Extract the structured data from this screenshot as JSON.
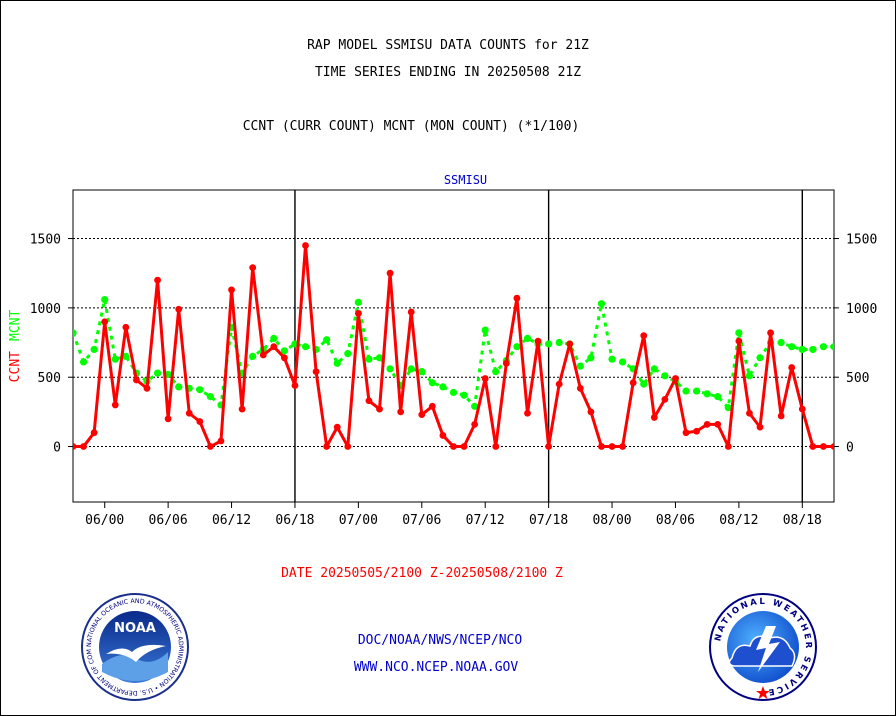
{
  "header": {
    "line1": "RAP MODEL SSMISU DATA COUNTS for 21Z",
    "line2": "TIME SERIES ENDING IN 20250508 21Z",
    "line3": "CCNT (CURR COUNT) MCNT (MON COUNT) (*1/100)"
  },
  "footer": {
    "date_range": "DATE 20250505/2100 Z-20250508/2100 Z",
    "org_path": "DOC/NOAA/NWS/NCEP/NCO",
    "website": "WWW.NCO.NCEP.NOAA.GOV"
  },
  "logos": {
    "noaa": {
      "center_text": "NOAA",
      "ring_text": "NATIONAL OCEANIC AND ATMOSPHERIC ADMINISTRATION • U.S. DEPARTMENT OF COMMERCE •"
    },
    "nws": {
      "ring_text": "NATIONAL WEATHER SERVICE"
    }
  },
  "colors": {
    "ccnt": "#ff0000",
    "mcnt": "#00ff00",
    "title": "#000000",
    "panel_title": "#0000cc",
    "footer_red": "#ff0000",
    "footer_blue": "#0000cc"
  },
  "chart_data": {
    "type": "line",
    "title": "SSMISU",
    "ylabel_parts": [
      "CCNT",
      "MCNT"
    ],
    "ylim": [
      -400,
      1850
    ],
    "yticks": [
      0,
      500,
      1000,
      1500
    ],
    "ytick_labels": [
      "0",
      "500",
      "1000",
      "1500"
    ],
    "xlim": [
      0,
      72
    ],
    "xticks": [
      3,
      9,
      15,
      21,
      27,
      33,
      39,
      45,
      51,
      57,
      63,
      69
    ],
    "xtick_labels": [
      "06/00",
      "06/06",
      "06/12",
      "06/18",
      "07/00",
      "07/06",
      "07/12",
      "07/18",
      "08/00",
      "08/06",
      "08/12",
      "08/18"
    ],
    "day_boundaries": [
      21,
      45,
      69
    ],
    "grid": "horizontal dotted at y ticks",
    "x": [
      0,
      1,
      2,
      3,
      4,
      5,
      6,
      7,
      8,
      9,
      10,
      11,
      12,
      13,
      14,
      15,
      16,
      17,
      18,
      19,
      20,
      21,
      22,
      23,
      24,
      25,
      26,
      27,
      28,
      29,
      30,
      31,
      32,
      33,
      34,
      35,
      36,
      37,
      38,
      39,
      40,
      41,
      42,
      43,
      44,
      45,
      46,
      47,
      48,
      49,
      50,
      51,
      52,
      53,
      54,
      55,
      56,
      57,
      58,
      59,
      60,
      61,
      62,
      63,
      64,
      65,
      66,
      67,
      68,
      69,
      70,
      71,
      72
    ],
    "series": [
      {
        "name": "CCNT",
        "values": [
          0,
          0,
          100,
          900,
          300,
          860,
          480,
          420,
          1200,
          200,
          990,
          240,
          180,
          0,
          40,
          1130,
          270,
          1290,
          660,
          720,
          640,
          440,
          1450,
          540,
          0,
          140,
          0,
          960,
          330,
          270,
          1250,
          250,
          970,
          230,
          290,
          80,
          0,
          0,
          160,
          490,
          0,
          600,
          1070,
          240,
          760,
          0,
          450,
          740,
          420,
          250,
          0,
          0,
          0,
          460,
          800,
          210,
          340,
          490,
          100,
          110,
          160,
          160,
          0,
          760,
          240,
          140,
          820,
          220,
          570,
          270,
          0,
          0,
          0
        ]
      },
      {
        "name": "MCNT",
        "values": [
          820,
          610,
          700,
          1060,
          630,
          650,
          530,
          470,
          530,
          520,
          430,
          420,
          410,
          360,
          300,
          860,
          530,
          650,
          700,
          780,
          690,
          740,
          720,
          700,
          770,
          600,
          670,
          1040,
          630,
          640,
          560,
          440,
          560,
          540,
          460,
          430,
          390,
          370,
          290,
          840,
          540,
          620,
          720,
          780,
          740,
          740,
          750,
          740,
          580,
          640,
          1030,
          630,
          610,
          560,
          450,
          560,
          510,
          470,
          400,
          400,
          380,
          360,
          280,
          820,
          510,
          640,
          750,
          750,
          720,
          700,
          700,
          720,
          720
        ]
      }
    ]
  }
}
